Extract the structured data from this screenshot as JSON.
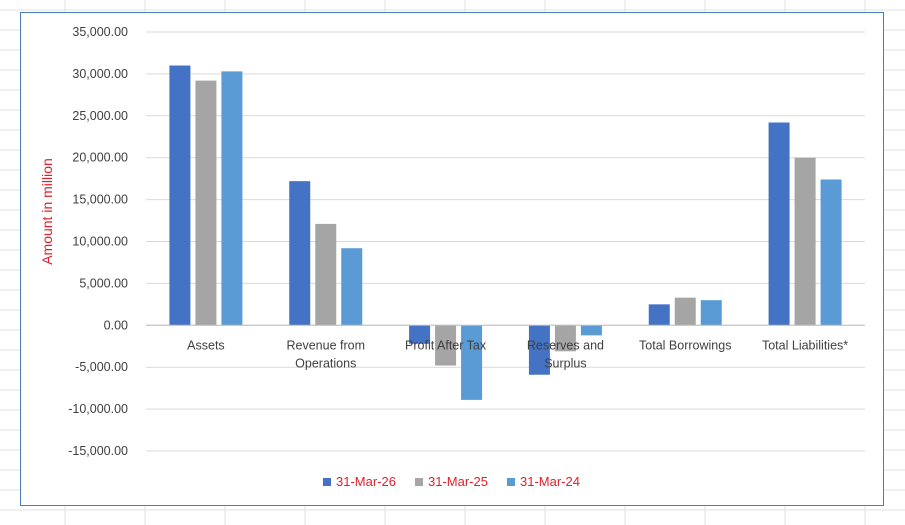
{
  "chart_data": {
    "type": "bar",
    "title": "",
    "xlabel": "",
    "ylabel": "Amount in million",
    "ylim": [
      -15000,
      35000
    ],
    "ytick_step": 5000,
    "y_ticks": [
      "35,000.00",
      "30,000.00",
      "25,000.00",
      "20,000.00",
      "15,000.00",
      "10,000.00",
      "5,000.00",
      "0.00",
      "-5,000.00",
      "-10,000.00",
      "-15,000.00"
    ],
    "grid": true,
    "legend_position": "bottom",
    "categories": [
      [
        "Assets"
      ],
      [
        "Revenue from",
        "Operations"
      ],
      [
        "Profit After Tax"
      ],
      [
        "Reserves and",
        "Surplus"
      ],
      [
        "Total Borrowings"
      ],
      [
        "Total Liabilities*"
      ]
    ],
    "series": [
      {
        "name": "31-Mar-26",
        "color": "#4472c4",
        "values": [
          31000,
          17200,
          -2200,
          -5900,
          2500,
          24200
        ]
      },
      {
        "name": "31-Mar-25",
        "color": "#a5a5a5",
        "values": [
          29200,
          12100,
          -4800,
          -3100,
          3300,
          20000
        ]
      },
      {
        "name": "31-Mar-24",
        "color": "#5b9bd5",
        "values": [
          30300,
          9200,
          -8900,
          -1200,
          3000,
          17400
        ]
      }
    ]
  }
}
